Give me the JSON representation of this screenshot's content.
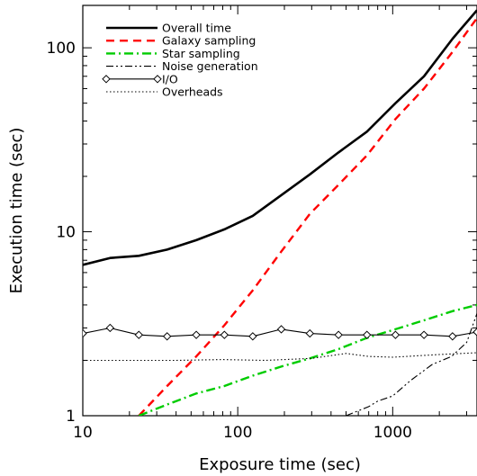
{
  "chart_data": {
    "type": "line",
    "xlabel": "Exposure time (sec)",
    "ylabel": "Execution time (sec)",
    "x_scale": "log",
    "y_scale": "log",
    "xlim": [
      10,
      3500
    ],
    "ylim": [
      1,
      170
    ],
    "grid": false,
    "legend_position": "top-left",
    "x_ticks": [
      10,
      100,
      1000
    ],
    "x_tick_labels": [
      "10",
      "100",
      "1000"
    ],
    "y_ticks": [
      1,
      10,
      100
    ],
    "y_tick_labels": [
      "1",
      "10",
      "100"
    ],
    "series": [
      {
        "name": "Overall time",
        "color": "#000000",
        "style": "solid",
        "x": [
          10,
          15,
          23,
          35,
          54,
          82,
          125,
          191,
          292,
          447,
          682,
          1042,
          1592,
          2433,
          3500
        ],
        "y": [
          6.6,
          7.2,
          7.4,
          8.0,
          9.0,
          10.3,
          12.2,
          15.8,
          20.5,
          27,
          35,
          50,
          70,
          112,
          160
        ]
      },
      {
        "name": "Galaxy sampling",
        "color": "#ff0000",
        "style": "dashed",
        "x": [
          23,
          35,
          54,
          82,
          125,
          191,
          292,
          447,
          682,
          1042,
          1592,
          2433,
          3500
        ],
        "y": [
          1.0,
          1.45,
          2.1,
          3.1,
          4.8,
          7.8,
          12.5,
          18,
          26,
          41,
          60,
          95,
          145
        ]
      },
      {
        "name": "Star sampling",
        "color": "#00cc00",
        "style": "dash-dot",
        "x": [
          23,
          35,
          54,
          82,
          125,
          191,
          292,
          447,
          682,
          1042,
          1592,
          2433,
          3500
        ],
        "y": [
          1.0,
          1.15,
          1.32,
          1.45,
          1.65,
          1.85,
          2.05,
          2.3,
          2.65,
          2.95,
          3.3,
          3.7,
          4.0
        ]
      },
      {
        "name": "Noise generation",
        "color": "#000000",
        "style": "dash-dot-dot",
        "x": [
          500,
          700,
          800,
          1000,
          1300,
          1800,
          2400,
          3000,
          3500
        ],
        "y": [
          1.0,
          1.12,
          1.2,
          1.28,
          1.55,
          1.9,
          2.1,
          2.5,
          3.6
        ]
      },
      {
        "name": "I/O",
        "color": "#000000",
        "style": "solid-diamond",
        "x": [
          10,
          15,
          23,
          35,
          54,
          82,
          125,
          191,
          292,
          447,
          682,
          1042,
          1592,
          2433,
          3500
        ],
        "y": [
          2.8,
          3.0,
          2.75,
          2.7,
          2.75,
          2.75,
          2.7,
          2.95,
          2.8,
          2.75,
          2.75,
          2.75,
          2.75,
          2.7,
          2.85
        ]
      },
      {
        "name": "Overheads",
        "color": "#000000",
        "style": "dotted",
        "x": [
          10,
          20,
          40,
          80,
          150,
          300,
          500,
          700,
          1000,
          2000,
          3500
        ],
        "y": [
          2.0,
          2.0,
          2.0,
          2.02,
          2.0,
          2.05,
          2.18,
          2.1,
          2.08,
          2.15,
          2.2
        ]
      }
    ]
  }
}
